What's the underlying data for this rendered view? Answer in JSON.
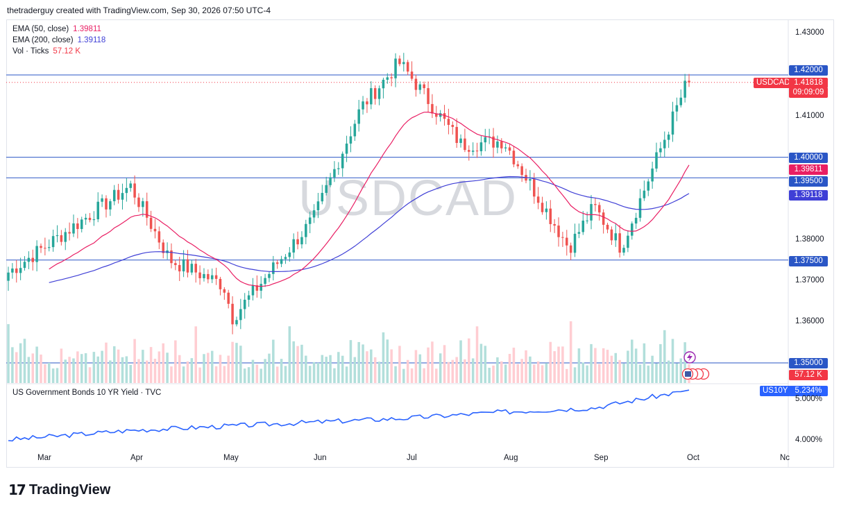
{
  "header": {
    "credit": "thetraderguy created with TradingView.com, Sep 30, 2026 07:50 UTC-4"
  },
  "watermark": "USDCAD",
  "legend": [
    {
      "name": "EMA (50, close)",
      "value": "1.39811",
      "color": "#e91e63"
    },
    {
      "name": "EMA (200, close)",
      "value": "1.39118",
      "color": "#3f3fd6"
    },
    {
      "name": "Vol · Ticks",
      "value": "57.12 K",
      "color": "#f23645"
    }
  ],
  "price_axis": {
    "ticks": [
      "1.43000",
      "1.41000",
      "1.38000",
      "1.37000",
      "1.36000"
    ],
    "labels": {
      "r1420": "1.42000",
      "last": "1.41818",
      "countdown": "09:09:09",
      "symbol": "USDCAD",
      "r1400": "1.40000",
      "ema50": "1.39811",
      "r1395": "1.39500",
      "ema200": "1.39118",
      "r1375": "1.37500",
      "r1350": "1.35000",
      "vol": "57.12 K"
    }
  },
  "lower_pane": {
    "title": "US Government Bonds 10 YR Yield · TVC",
    "symbol": "US10Y",
    "value": "5.234%",
    "ticks": [
      "5.000%",
      "4.000%"
    ]
  },
  "x_axis": [
    "Mar",
    "Apr",
    "May",
    "Jun",
    "Jul",
    "Aug",
    "Sep",
    "Oct",
    "Nc"
  ],
  "logo": {
    "mark": "17",
    "text": "TradingView"
  },
  "colors": {
    "up": "#26a69a",
    "down": "#ef5350",
    "ema50": "#e91e63",
    "ema200": "#3f3fd6",
    "hline": "#2a56c6",
    "yield": "#2962ff"
  },
  "chart_data": [
    {
      "type": "candlestick",
      "title": "USDCAD",
      "ylim": [
        1.35,
        1.43
      ],
      "horizontal_levels": [
        1.42,
        1.4,
        1.395,
        1.375,
        1.35
      ],
      "anchors": [
        {
          "x": "Mar",
          "close": 1.372
        },
        {
          "x": "Apr",
          "close": 1.393
        },
        {
          "x": "mid Apr",
          "close": 1.375
        },
        {
          "x": "May",
          "close": 1.369
        },
        {
          "x": "May 10",
          "close": 1.361
        },
        {
          "x": "Jun",
          "close": 1.385
        },
        {
          "x": "Jun 20",
          "close": 1.412
        },
        {
          "x": "Jun 25",
          "close": 1.423
        },
        {
          "x": "Jul",
          "close": 1.42
        },
        {
          "x": "Jul 15",
          "close": 1.403
        },
        {
          "x": "Aug",
          "close": 1.404
        },
        {
          "x": "Aug 20",
          "close": 1.378
        },
        {
          "x": "Sep",
          "close": 1.388
        },
        {
          "x": "Sep 10",
          "close": 1.378
        },
        {
          "x": "Sep 30",
          "close": 1.41818
        }
      ],
      "ema50_last": 1.39811,
      "ema200_last": 1.39118,
      "volume_last": "57.12 K"
    },
    {
      "type": "line",
      "title": "US Government Bonds 10 YR Yield · TVC",
      "ylim": [
        3.8,
        5.4
      ],
      "x": [
        "Mar",
        "Apr",
        "May",
        "Jun",
        "Jul",
        "Aug",
        "Sep",
        "Oct"
      ],
      "values": [
        4.02,
        4.25,
        4.35,
        4.45,
        4.55,
        4.7,
        4.8,
        5.234
      ]
    }
  ]
}
